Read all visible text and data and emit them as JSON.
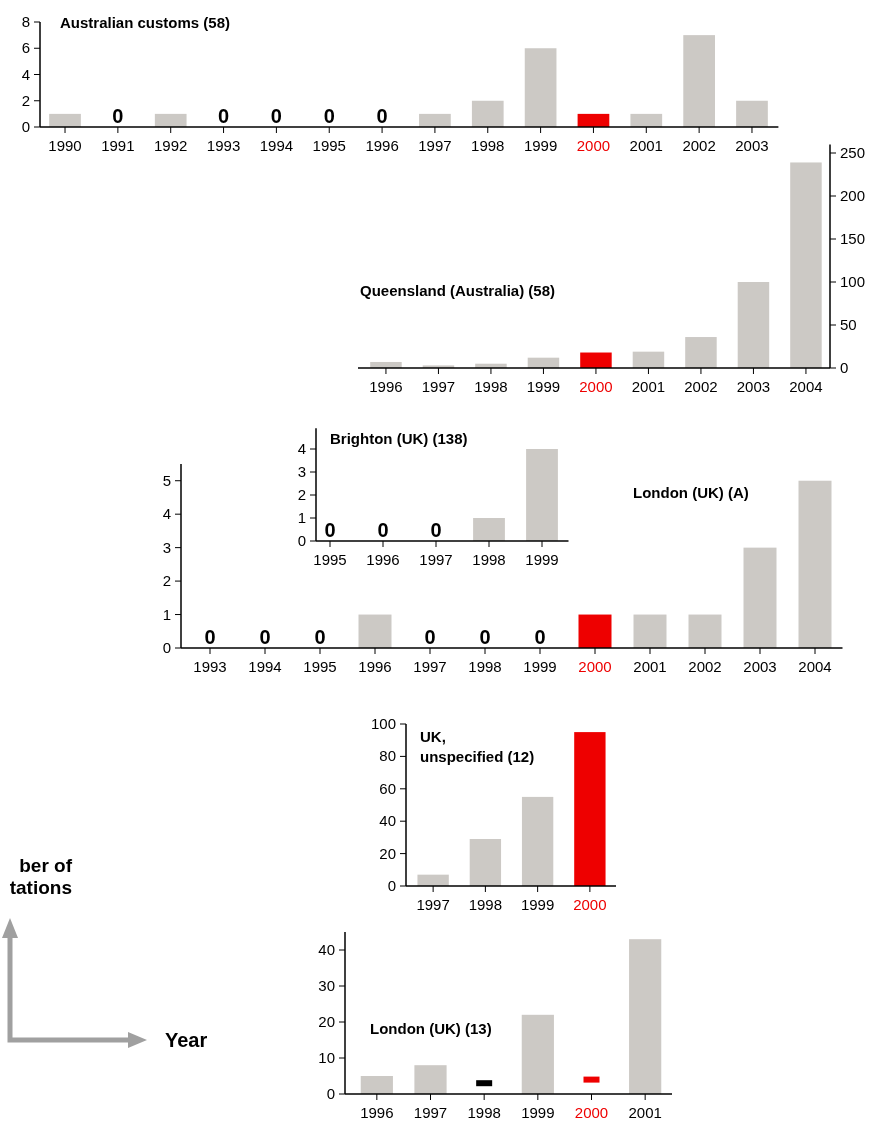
{
  "chart_data": [
    {
      "type": "bar",
      "title": "Australian customs (58)",
      "categories": [
        "1990",
        "1991",
        "1992",
        "1993",
        "1994",
        "1995",
        "1996",
        "1997",
        "1998",
        "1999",
        "2000",
        "2001",
        "2002",
        "2003"
      ],
      "values": [
        1,
        0,
        1,
        0,
        0,
        0,
        0,
        1,
        2,
        6,
        1,
        1,
        7,
        2
      ],
      "colors": [
        "#ccc9c5",
        "#ccc9c5",
        "#ccc9c5",
        "#ccc9c5",
        "#ccc9c5",
        "#ccc9c5",
        "#ccc9c5",
        "#ccc9c5",
        "#ccc9c5",
        "#ccc9c5",
        "#ee0000",
        "#ccc9c5",
        "#ccc9c5",
        "#ccc9c5"
      ],
      "value_labels": [
        null,
        "0",
        null,
        "0",
        "0",
        "0",
        "0",
        null,
        null,
        null,
        null,
        null,
        null,
        null
      ],
      "ylim": [
        0,
        8
      ],
      "yticks": [
        0,
        2,
        4,
        6,
        8
      ]
    },
    {
      "type": "bar",
      "title": "Queensland (Australia) (58)",
      "categories": [
        "1996",
        "1997",
        "1998",
        "1999",
        "2000",
        "2001",
        "2002",
        "2003",
        "2004"
      ],
      "values": [
        7,
        3,
        5,
        12,
        18,
        19,
        36,
        100,
        239
      ],
      "colors": [
        "#ccc9c5",
        "#ccc9c5",
        "#ccc9c5",
        "#ccc9c5",
        "#ee0000",
        "#ccc9c5",
        "#ccc9c5",
        "#ccc9c5",
        "#ccc9c5"
      ],
      "ylim": [
        0,
        260
      ],
      "yticks": [
        0,
        50,
        100,
        150,
        200,
        250
      ]
    },
    {
      "type": "bar",
      "title": "Brighton (UK) (138)",
      "categories": [
        "1995",
        "1996",
        "1997",
        "1998",
        "1999"
      ],
      "values": [
        0,
        0,
        0,
        1,
        4
      ],
      "colors": [
        "#ccc9c5",
        "#ccc9c5",
        "#ccc9c5",
        "#ccc9c5",
        "#ccc9c5"
      ],
      "value_labels": [
        "0",
        "0",
        "0",
        null,
        null
      ],
      "ylim": [
        0,
        4.9
      ],
      "yticks": [
        0,
        1,
        2,
        3,
        4
      ]
    },
    {
      "type": "bar",
      "title": "London (UK) (A)",
      "categories": [
        "1993",
        "1994",
        "1995",
        "1996",
        "1997",
        "1998",
        "1999",
        "2000",
        "2001",
        "2002",
        "2003",
        "2004"
      ],
      "values": [
        0,
        0,
        0,
        1,
        0,
        0,
        0,
        1,
        1,
        1,
        3,
        5
      ],
      "colors": [
        "#ccc9c5",
        "#ccc9c5",
        "#ccc9c5",
        "#ccc9c5",
        "#ccc9c5",
        "#ccc9c5",
        "#ccc9c5",
        "#ee0000",
        "#ccc9c5",
        "#ccc9c5",
        "#ccc9c5",
        "#ccc9c5"
      ],
      "value_labels": [
        "0",
        "0",
        "0",
        null,
        "0",
        "0",
        "0",
        null,
        null,
        null,
        null,
        null
      ],
      "ylim": [
        0,
        5.5
      ],
      "yticks": [
        0,
        1,
        2,
        3,
        4,
        5
      ]
    },
    {
      "type": "bar",
      "title": "UK, unspecified (12)",
      "categories": [
        "1997",
        "1998",
        "1999",
        "2000"
      ],
      "values": [
        7,
        29,
        55,
        95
      ],
      "colors": [
        "#ccc9c5",
        "#ccc9c5",
        "#ccc9c5",
        "#ee0000"
      ],
      "ylim": [
        0,
        100
      ],
      "yticks": [
        0,
        20,
        40,
        60,
        80,
        100
      ]
    },
    {
      "type": "bar",
      "title": "London (UK) (13)",
      "categories": [
        "1996",
        "1997",
        "1998",
        "1999",
        "2000",
        "2001"
      ],
      "series": [
        {
          "type": "bar",
          "values": [
            5,
            8,
            null,
            22,
            null,
            43
          ],
          "colors": [
            "#ccc9c5",
            "#ccc9c5",
            "#ccc9c5",
            "#ccc9c5",
            "#ee0000",
            "#ccc9c5"
          ]
        },
        {
          "type": "scatter",
          "values": [
            null,
            null,
            3,
            null,
            4,
            null
          ],
          "colors": [
            null,
            null,
            "#000000",
            null,
            "#ee0000",
            null
          ],
          "marker": "square"
        }
      ],
      "ylim": [
        0,
        45
      ],
      "yticks": [
        0,
        10,
        20,
        30,
        40
      ]
    },
    {
      "type": "other",
      "ylabel": "ber of tations",
      "xlabel": "Year"
    }
  ]
}
